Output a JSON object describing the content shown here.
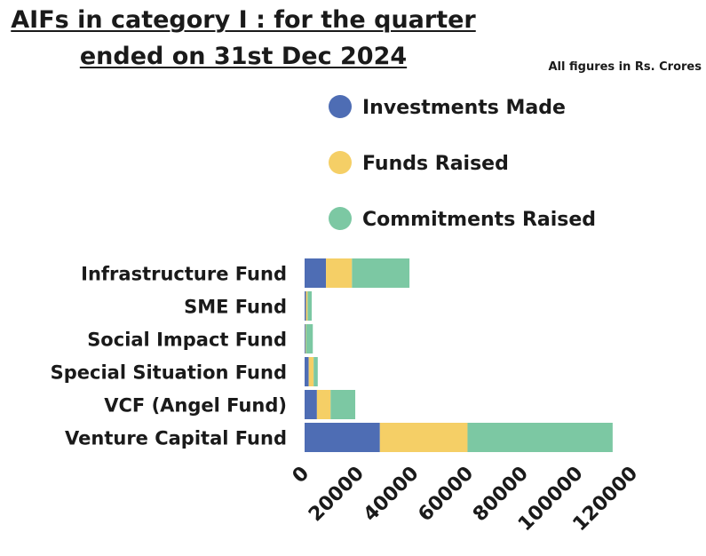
{
  "title": "AIFs in category I : for the quarter ended on 31st Dec 2024",
  "note": "All figures in Rs. Crores",
  "chart_data": {
    "type": "bar",
    "orientation": "horizontal",
    "stacked": true,
    "title": "AIFs in category I : for the quarter ended on 31st Dec 2024",
    "subtitle": "All figures in Rs. Crores",
    "categories": [
      "Infrastructure Fund",
      "SME Fund",
      "Social Impact Fund",
      "Special Situation Fund",
      "VCF (Angel Fund)",
      "Venture Capital Fund"
    ],
    "series": [
      {
        "name": "Investments Made",
        "color": "#4e6db4",
        "values": [
          7800,
          500,
          300,
          1500,
          4500,
          27500
        ]
      },
      {
        "name": "Funds Raised",
        "color": "#f5cf66",
        "values": [
          9500,
          600,
          200,
          1800,
          5000,
          32000
        ]
      },
      {
        "name": "Commitments Raised",
        "color": "#7cc8a3",
        "values": [
          21000,
          1500,
          2500,
          1500,
          9000,
          53000
        ]
      }
    ],
    "xlim": [
      0,
      120000
    ],
    "xticks": [
      0,
      20000,
      40000,
      60000,
      80000,
      100000,
      120000
    ],
    "legend_position": "top-right",
    "grid": false
  }
}
